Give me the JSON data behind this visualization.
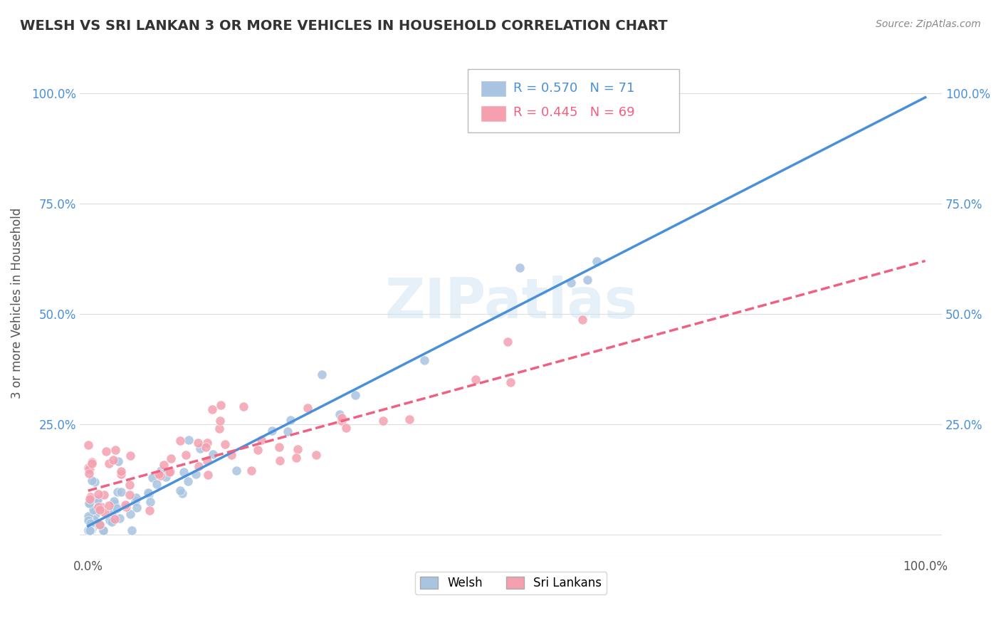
{
  "title": "WELSH VS SRI LANKAN 3 OR MORE VEHICLES IN HOUSEHOLD CORRELATION CHART",
  "source": "Source: ZipAtlas.com",
  "ylabel": "3 or more Vehicles in Household",
  "welsh_R": 0.57,
  "welsh_N": 71,
  "sri_lankan_R": 0.445,
  "sri_lankan_N": 69,
  "welsh_color": "#a8c4e0",
  "sri_lankan_color": "#f4a0b0",
  "welsh_line_color": "#4a90d9",
  "sri_lankan_line_color": "#f06080",
  "background_color": "#ffffff",
  "welsh_slope": 0.97,
  "welsh_intercept": 0.02,
  "sri_slope": 0.52,
  "sri_intercept": 0.1
}
